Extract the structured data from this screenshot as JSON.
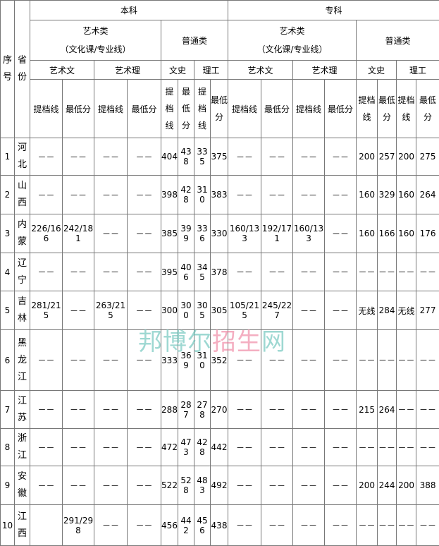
{
  "header": {
    "seq": "序号",
    "province": "省份",
    "groups": [
      "本科",
      "专科"
    ],
    "art_type": "艺术类",
    "art_note": "（文化课/专业线）",
    "normal_type": "普通类",
    "tracks": [
      "艺术文",
      "艺术理",
      "文史",
      "理工"
    ],
    "art_sub": [
      "提档线",
      "最低分"
    ],
    "normal_sub": [
      "提档线",
      "最低分"
    ]
  },
  "rows": [
    {
      "n": "1",
      "p": "河北",
      "v": [
        "－－",
        "－－",
        "－－",
        "－－",
        "404",
        "438",
        "335",
        "375",
        "－－",
        "－－",
        "－－",
        "－－",
        "200",
        "257",
        "200",
        "275"
      ]
    },
    {
      "n": "2",
      "p": "山西",
      "v": [
        "－－",
        "－－",
        "－－",
        "－－",
        "398",
        "428",
        "310",
        "383",
        "－－",
        "－－",
        "－－",
        "－－",
        "160",
        "329",
        "160",
        "264"
      ]
    },
    {
      "n": "3",
      "p": "内蒙",
      "v": [
        "226/166",
        "242/181",
        "－－",
        "－－",
        "385",
        "399",
        "336",
        "330",
        "160/133",
        "192/171",
        "160/133",
        "－－",
        "160",
        "166",
        "160",
        "176"
      ]
    },
    {
      "n": "4",
      "p": "辽宁",
      "v": [
        "－－",
        "－－",
        "－－",
        "－－",
        "395",
        "406",
        "345",
        "378",
        "－－",
        "－－",
        "－－",
        "－－",
        "－－",
        "－－",
        "－－",
        "－－"
      ]
    },
    {
      "n": "5",
      "p": "吉林",
      "v": [
        "281/215",
        "－－",
        "263/215",
        "－－",
        "300",
        "300",
        "305",
        "305",
        "105/215",
        "245/227",
        "－－",
        "－－",
        "无线",
        "284",
        "无线",
        "277"
      ]
    },
    {
      "n": "6",
      "p": "黑龙江",
      "v": [
        "－－",
        "－－",
        "－－",
        "－－",
        "333",
        "369",
        "310",
        "352",
        "－－",
        "－－",
        "－－",
        "－－",
        "－－",
        "－－",
        "－－",
        "－－"
      ]
    },
    {
      "n": "7",
      "p": "江苏",
      "v": [
        "－－",
        "－－",
        "－－",
        "－－",
        "288",
        "287",
        "278",
        "270",
        "－－",
        "－－",
        "－－",
        "－－",
        "215",
        "264",
        "－－",
        "－－"
      ]
    },
    {
      "n": "8",
      "p": "浙江",
      "v": [
        "－－",
        "－－",
        "－－",
        "－－",
        "472",
        "473",
        "428",
        "442",
        "－－",
        "－－",
        "－－",
        "－－",
        "－－",
        "－－",
        "－－",
        "－－"
      ]
    },
    {
      "n": "9",
      "p": "安徽",
      "v": [
        "－－",
        "－－",
        "－－",
        "－－",
        "522",
        "528",
        "483",
        "492",
        "－－",
        "－－",
        "－－",
        "－－",
        "200",
        "244",
        "200",
        "388"
      ]
    },
    {
      "n": "10",
      "p": "江西",
      "v": [
        "",
        "291/298",
        "－－",
        "－－",
        "456",
        "442",
        "456",
        "438",
        "－－",
        "－－",
        "－－",
        "－－",
        "－－",
        "－－",
        "－－",
        "－－"
      ]
    }
  ],
  "watermark": {
    "part1": "邦博尔",
    "part2": "招生",
    "part3": "网",
    "colors": [
      "#5fbfb5",
      "#ee7a98"
    ]
  }
}
